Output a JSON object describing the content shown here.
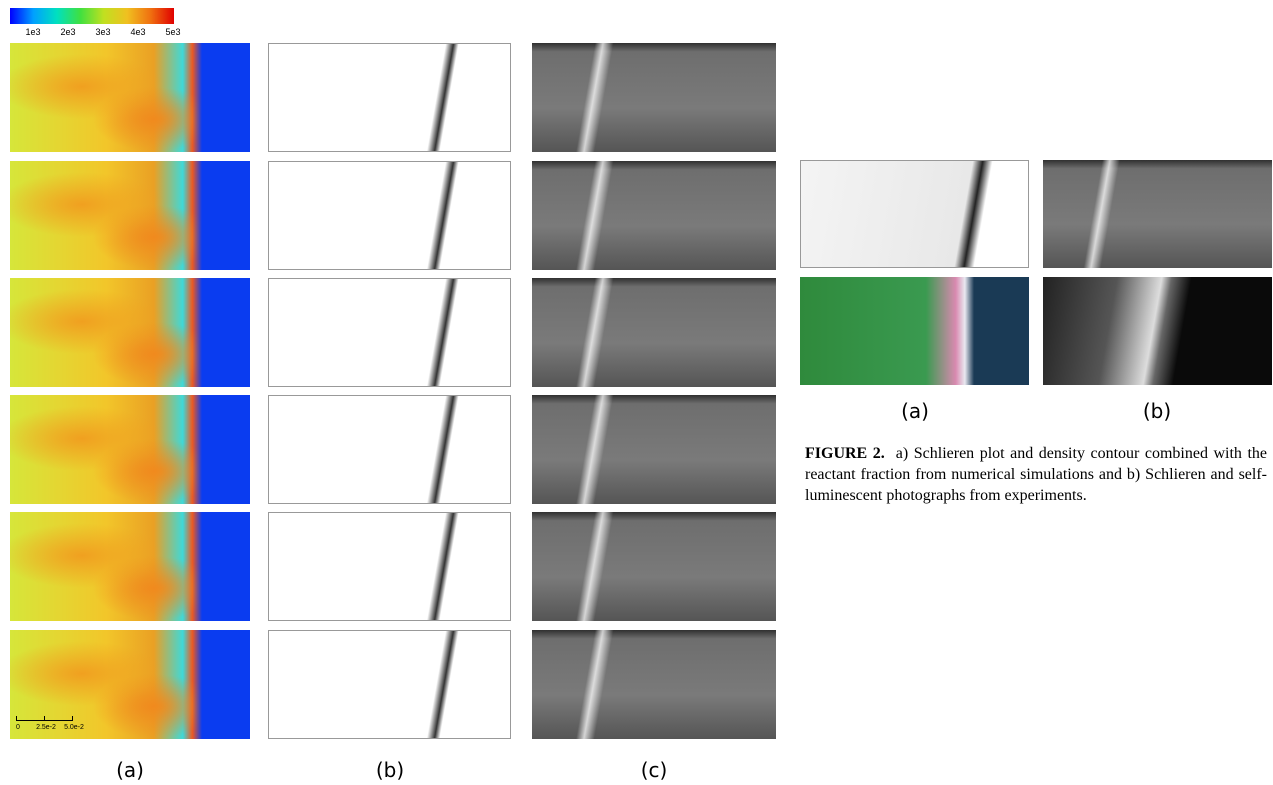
{
  "colorbar": {
    "ticks": [
      "1e3",
      "2e3",
      "3e3",
      "4e3",
      "5e3"
    ]
  },
  "scale_bar": {
    "ticks": [
      "0",
      "2.5e-2",
      "5.0e-2"
    ]
  },
  "left_figure": {
    "labels": [
      "(a)",
      "(b)",
      "(c)"
    ]
  },
  "right_figure": {
    "labels": [
      "(a)",
      "(b)"
    ]
  },
  "caption": {
    "label": "FIGURE 2.",
    "text": "a) Schlieren plot and density contour combined with the reactant fraction from numerical simulations and b) Schlieren and self-luminescent photographs from experiments."
  }
}
